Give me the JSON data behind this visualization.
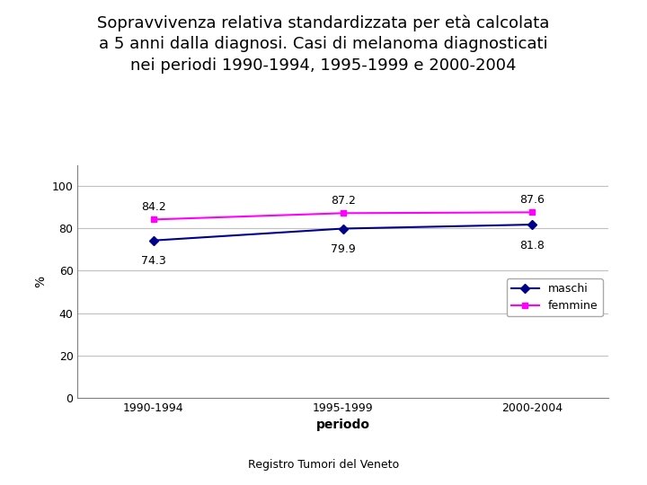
{
  "title": "Sopravvivenza relativa standardizzata per età calcolata\na 5 anni dalla diagnosi. Casi di melanoma diagnosticati\nnei periodi 1990-1994, 1995-1999 e 2000-2004",
  "xlabel": "periodo",
  "ylabel": "%",
  "categories": [
    "1990-1994",
    "1995-1999",
    "2000-2004"
  ],
  "maschi_values": [
    74.3,
    79.9,
    81.8
  ],
  "femmine_values": [
    84.2,
    87.2,
    87.6
  ],
  "maschi_color": "#00008B",
  "femmine_color": "#FF00FF",
  "maschi_label": "maschi",
  "femmine_label": "femmine",
  "ylim": [
    0,
    110
  ],
  "yticks": [
    0,
    20,
    40,
    60,
    80,
    100
  ],
  "background_color": "#ffffff",
  "annotation_fontsize": 9,
  "title_fontsize": 13,
  "axis_label_fontsize": 10,
  "tick_fontsize": 9,
  "legend_fontsize": 9,
  "footer_text": "Registro Tumori del Veneto",
  "footer_fontsize": 9,
  "xlim": [
    -0.4,
    2.4
  ]
}
